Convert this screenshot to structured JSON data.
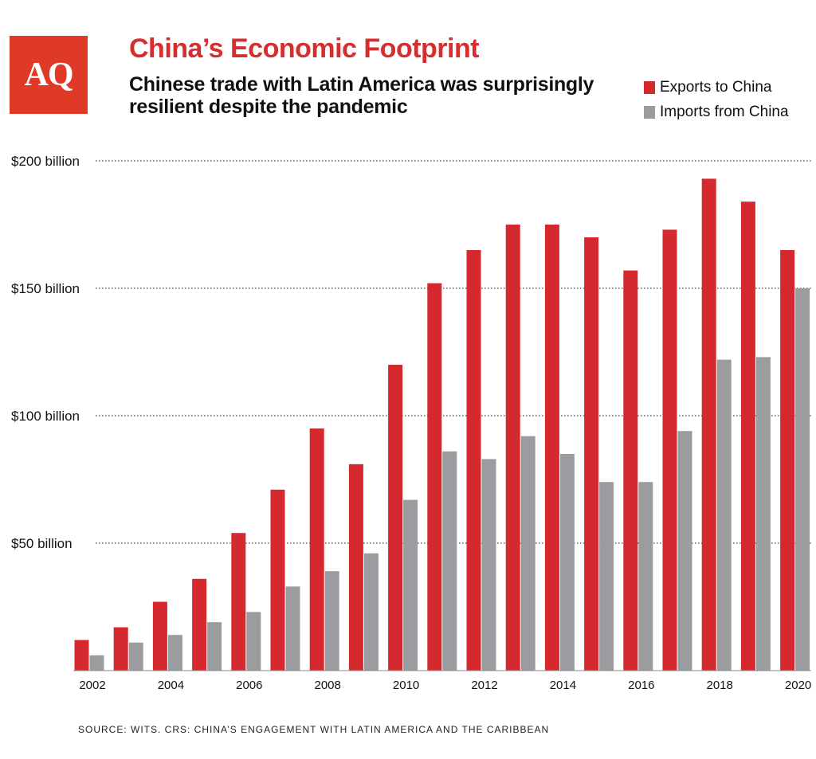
{
  "header": {
    "logo_text": "AQ",
    "logo_color": "#de3a27"
  },
  "chart_data": {
    "type": "bar",
    "title": "China’s Economic Footprint",
    "subtitle": "Chinese trade with Latin America was surprisingly resilient despite the pandemic",
    "xlabel": "",
    "ylabel": "",
    "ylim": [
      0,
      200
    ],
    "categories": [
      "2002",
      "2003",
      "2004",
      "2005",
      "2006",
      "2007",
      "2008",
      "2009",
      "2010",
      "2011",
      "2012",
      "2013",
      "2014",
      "2015",
      "2016",
      "2017",
      "2018",
      "2019",
      "2020"
    ],
    "x_tick_labels": [
      "2002",
      "2004",
      "2006",
      "2008",
      "2010",
      "2012",
      "2014",
      "2016",
      "2018",
      "2020"
    ],
    "y_ticks": [
      {
        "value": 50,
        "label": "$50 billion"
      },
      {
        "value": 100,
        "label": "$100 billion"
      },
      {
        "value": 150,
        "label": "$150 billion"
      },
      {
        "value": 200,
        "label": "$200 billion"
      }
    ],
    "grid": "dotted horizontal",
    "legend_position": "top-right",
    "series": [
      {
        "name": "Exports to China",
        "color": "#d42a2f",
        "values": [
          12,
          17,
          27,
          36,
          54,
          71,
          95,
          81,
          120,
          152,
          165,
          175,
          175,
          170,
          157,
          173,
          193,
          184,
          165
        ]
      },
      {
        "name": "Imports from China",
        "color": "#9b9c9f",
        "values": [
          6,
          11,
          14,
          19,
          23,
          33,
          39,
          46,
          67,
          86,
          83,
          92,
          85,
          74,
          74,
          94,
          122,
          123,
          150
        ]
      }
    ],
    "source": "SOURCE: WITS. CRS: CHINA’S ENGAGEMENT WITH LATIN AMERICA AND THE CARIBBEAN"
  }
}
